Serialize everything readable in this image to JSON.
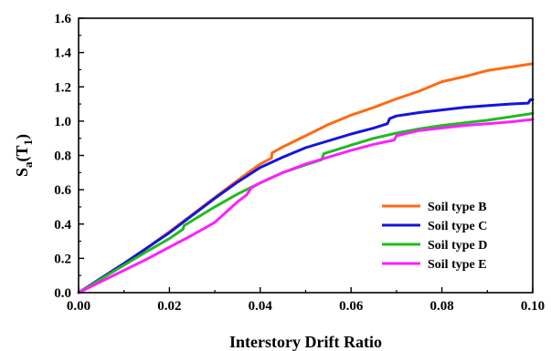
{
  "chart_data": {
    "type": "line",
    "xlabel": "Interstory Drift Ratio",
    "ylabel": {
      "main": "S",
      "sub1": "a",
      "mid": "(T",
      "sub2": "1",
      "end": ")"
    },
    "xlim": [
      0.0,
      0.1
    ],
    "ylim": [
      0.0,
      1.6
    ],
    "x_ticks": [
      "0.00",
      "0.02",
      "0.04",
      "0.06",
      "0.08",
      "0.10"
    ],
    "y_ticks": [
      "0.0",
      "0.2",
      "0.4",
      "0.6",
      "0.8",
      "1.0",
      "1.2",
      "1.4",
      "1.6"
    ],
    "grid": false,
    "legend_position": "bottom-right",
    "series": [
      {
        "name": "Soil type B",
        "color": "#ff6a13",
        "points": [
          [
            0,
            0
          ],
          [
            0.005,
            0.085
          ],
          [
            0.01,
            0.17
          ],
          [
            0.015,
            0.26
          ],
          [
            0.02,
            0.355
          ],
          [
            0.025,
            0.455
          ],
          [
            0.03,
            0.555
          ],
          [
            0.035,
            0.655
          ],
          [
            0.04,
            0.75
          ],
          [
            0.0425,
            0.785
          ],
          [
            0.0426,
            0.815
          ],
          [
            0.045,
            0.85
          ],
          [
            0.05,
            0.915
          ],
          [
            0.055,
            0.98
          ],
          [
            0.06,
            1.035
          ],
          [
            0.065,
            1.08
          ],
          [
            0.07,
            1.13
          ],
          [
            0.075,
            1.175
          ],
          [
            0.08,
            1.23
          ],
          [
            0.085,
            1.26
          ],
          [
            0.09,
            1.295
          ],
          [
            0.095,
            1.315
          ],
          [
            0.1,
            1.335
          ]
        ]
      },
      {
        "name": "Soil type C",
        "color": "#1414dd",
        "points": [
          [
            0,
            0
          ],
          [
            0.005,
            0.085
          ],
          [
            0.01,
            0.17
          ],
          [
            0.015,
            0.26
          ],
          [
            0.02,
            0.35
          ],
          [
            0.025,
            0.45
          ],
          [
            0.03,
            0.55
          ],
          [
            0.035,
            0.645
          ],
          [
            0.04,
            0.73
          ],
          [
            0.045,
            0.79
          ],
          [
            0.05,
            0.845
          ],
          [
            0.055,
            0.885
          ],
          [
            0.06,
            0.925
          ],
          [
            0.065,
            0.96
          ],
          [
            0.068,
            0.985
          ],
          [
            0.0685,
            1.015
          ],
          [
            0.07,
            1.03
          ],
          [
            0.075,
            1.05
          ],
          [
            0.08,
            1.065
          ],
          [
            0.085,
            1.08
          ],
          [
            0.09,
            1.09
          ],
          [
            0.095,
            1.1
          ],
          [
            0.099,
            1.105
          ],
          [
            0.0995,
            1.125
          ],
          [
            0.1,
            1.125
          ]
        ]
      },
      {
        "name": "Soil type D",
        "color": "#1fbb1f",
        "points": [
          [
            0,
            0
          ],
          [
            0.005,
            0.08
          ],
          [
            0.01,
            0.16
          ],
          [
            0.015,
            0.24
          ],
          [
            0.02,
            0.315
          ],
          [
            0.023,
            0.37
          ],
          [
            0.0232,
            0.39
          ],
          [
            0.025,
            0.42
          ],
          [
            0.03,
            0.5
          ],
          [
            0.035,
            0.575
          ],
          [
            0.04,
            0.64
          ],
          [
            0.045,
            0.7
          ],
          [
            0.05,
            0.745
          ],
          [
            0.0535,
            0.775
          ],
          [
            0.054,
            0.81
          ],
          [
            0.06,
            0.86
          ],
          [
            0.065,
            0.9
          ],
          [
            0.07,
            0.93
          ],
          [
            0.075,
            0.955
          ],
          [
            0.08,
            0.975
          ],
          [
            0.085,
            0.99
          ],
          [
            0.09,
            1.005
          ],
          [
            0.095,
            1.025
          ],
          [
            0.1,
            1.045
          ]
        ]
      },
      {
        "name": "Soil type E",
        "color": "#ff1fff",
        "points": [
          [
            0,
            0
          ],
          [
            0.005,
            0.065
          ],
          [
            0.01,
            0.13
          ],
          [
            0.015,
            0.195
          ],
          [
            0.02,
            0.265
          ],
          [
            0.025,
            0.335
          ],
          [
            0.03,
            0.41
          ],
          [
            0.035,
            0.53
          ],
          [
            0.037,
            0.57
          ],
          [
            0.038,
            0.61
          ],
          [
            0.04,
            0.64
          ],
          [
            0.045,
            0.7
          ],
          [
            0.05,
            0.75
          ],
          [
            0.055,
            0.79
          ],
          [
            0.06,
            0.83
          ],
          [
            0.065,
            0.865
          ],
          [
            0.0695,
            0.89
          ],
          [
            0.07,
            0.915
          ],
          [
            0.075,
            0.945
          ],
          [
            0.08,
            0.96
          ],
          [
            0.085,
            0.975
          ],
          [
            0.09,
            0.985
          ],
          [
            0.095,
            0.995
          ],
          [
            0.1,
            1.01
          ]
        ]
      }
    ]
  }
}
